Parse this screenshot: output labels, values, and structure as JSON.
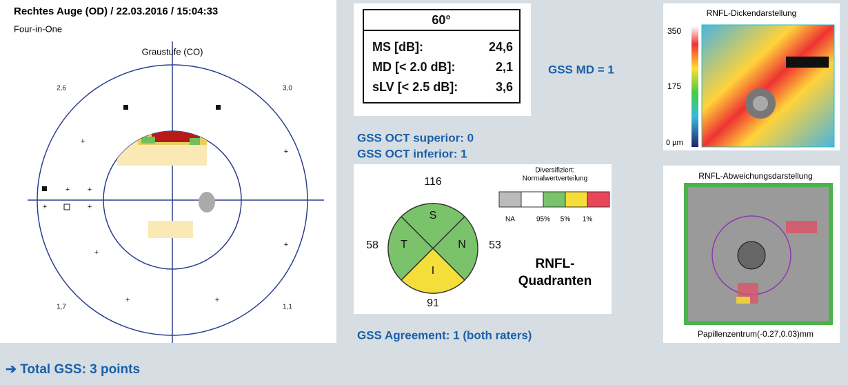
{
  "header": {
    "title": "Rechtes Auge (OD) / 22.03.2016 / 15:04:33",
    "subtitle": "Four-in-One"
  },
  "visual_field": {
    "title": "Graustufe (CO)",
    "corners": [
      "2,6",
      "3,0",
      "1,7",
      "1,1"
    ]
  },
  "indices": {
    "header": "60°",
    "rows": [
      [
        "MS [dB]:",
        "24,6"
      ],
      [
        "MD [< 2.0 dB]:",
        "2,1"
      ],
      [
        "sLV [< 2.5 dB]:",
        "3,6"
      ]
    ]
  },
  "gss_md": "GSS MD = 1",
  "gss_oct": [
    "GSS OCT superior: 0",
    "GSS OCT inferior: 1"
  ],
  "quadrants": {
    "values": {
      "S": "116",
      "T": "58",
      "N": "53",
      "I": "91"
    },
    "letters": [
      "S",
      "T",
      "N",
      "I"
    ],
    "legend_title": [
      "Diversifiziert:",
      "Normalwertverteilung"
    ],
    "legend_labels": [
      "NA",
      "95%",
      "5%",
      "1%"
    ],
    "caption": [
      "RNFL-",
      "Quadranten"
    ]
  },
  "gss_agreement": "GSS Agreement: 1 (both raters)",
  "thickness": {
    "title": "RNFL-Dickendarstellung",
    "scale": [
      "350",
      "175",
      "0 µm"
    ]
  },
  "deviation": {
    "title": "RNFL-Abweichungsdarstellung",
    "caption": "Papillenzentrum(-0.27,0.03)mm"
  },
  "total": "➔ Total GSS: 3 points"
}
